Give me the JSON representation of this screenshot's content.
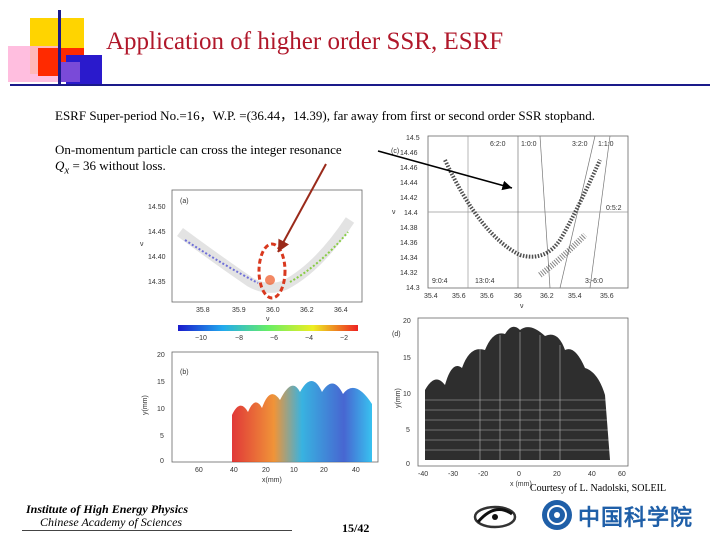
{
  "slide": {
    "title": "Application of higher order SSR, ESRF",
    "subtitle": "ESRF Super-period No.=16，W.P. =(36.44，14.39), far away from first or second order SSR stopband.",
    "note_line1": "On-momentum particle can cross the integer resonance",
    "note_line2_var": "Q",
    "note_line2_sub": "x",
    "note_line2_rest": " = 36 without loss.",
    "courtesy": "Courtesy of  L. Nadolski, SOLEIL",
    "page_number": "15/42"
  },
  "footer": {
    "institute_line1": "Institute of High Energy Physics",
    "institute_line2": "Chinese Academy of Sciences",
    "cas_logo": "中国科学院"
  },
  "panels": {
    "a_label": "(a)",
    "b_label": "(b)",
    "c_label": "(c)",
    "d_label": "(d)",
    "a_yticks": [
      "14.50",
      "14.45",
      "14.40",
      "14.35"
    ],
    "a_xticks": [
      "35.8",
      "35.9",
      "36.0",
      "36.2",
      "36.4"
    ],
    "a_xlabel": "ν",
    "a_ylabel": "ν",
    "a_colorbar_ticks": [
      "−10",
      "−8",
      "−6",
      "−4",
      "−2"
    ],
    "b_yticks": [
      "20",
      "15",
      "10",
      "5",
      "0"
    ],
    "b_xticks": [
      "60",
      "40",
      "20",
      "10",
      "20",
      "40"
    ],
    "b_xlabel": "x(mm)",
    "b_ylabel": "y(mm)",
    "c_yticks": [
      "14.5",
      "14.46",
      "14.46",
      "14.44",
      "14.42",
      "14.4",
      "14.38",
      "14.36",
      "14.34",
      "14.32",
      "14.3"
    ],
    "c_xticks": [
      "35.4",
      "35.6",
      "35.6",
      "36",
      "36.2",
      "35.4",
      "35.6"
    ],
    "c_res_labels": [
      "6:2:0",
      "1:0:0",
      "3:2:0",
      "1:1:0",
      "0:5:2",
      "9:0:4",
      "13:0:4",
      "3:-6:0"
    ],
    "c_xlabel": "ν",
    "c_ylabel": "ν",
    "d_yticks": [
      "20",
      "15",
      "10",
      "5",
      "0"
    ],
    "d_xticks": [
      "-40",
      "-30",
      "-20",
      "0",
      "20",
      "40",
      "60"
    ],
    "d_xlabel": "x (mm)",
    "d_ylabel": "y(mm)"
  },
  "colors": {
    "title": "#b0172a",
    "accent_blue": "#1a1a8a",
    "highlight_red": "#d9381e",
    "arrow_black": "#000000"
  }
}
